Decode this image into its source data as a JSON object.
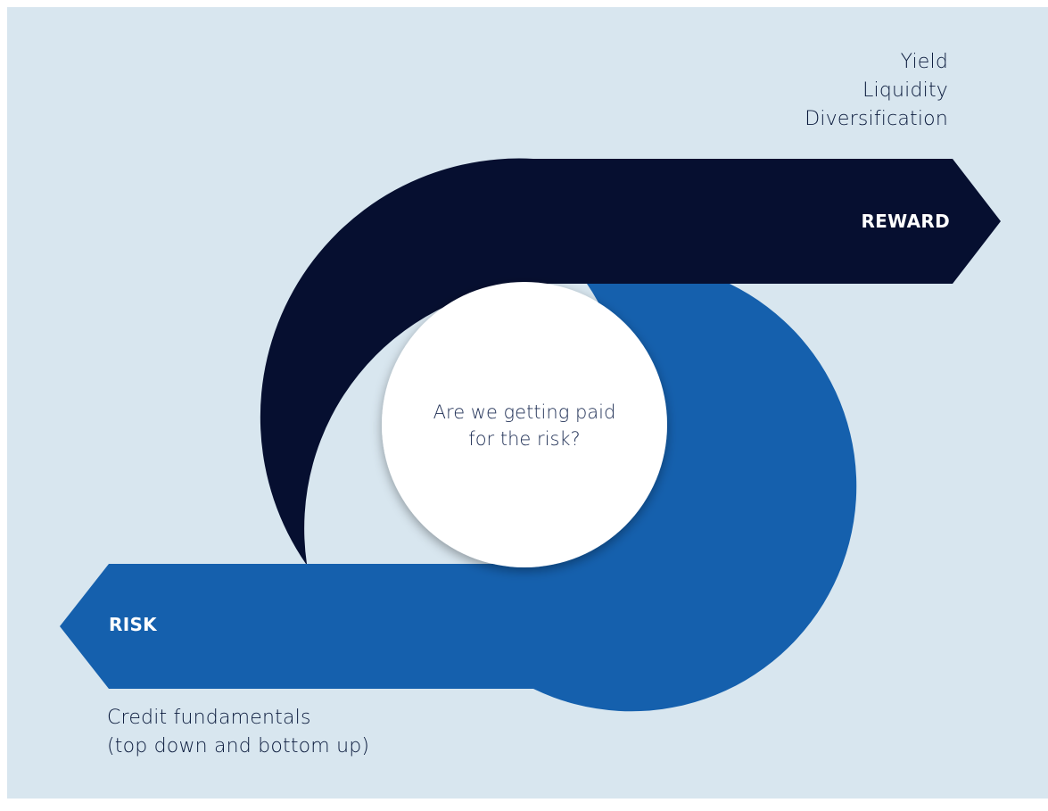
{
  "colors": {
    "background": "#d8e6ef",
    "reward_arrow": "#060f30",
    "risk_arrow": "#1560ad",
    "center_circle": "#ffffff",
    "text_dark": "#0a1a3c"
  },
  "reward": {
    "label": "REWARD",
    "items": [
      "Yield",
      "Liquidity",
      "Diversification"
    ]
  },
  "risk": {
    "label": "RISK",
    "items": [
      "Credit fundamentals",
      "(top down and bottom up)"
    ]
  },
  "center": {
    "lines": [
      "Are we getting paid",
      "for the risk?"
    ]
  }
}
